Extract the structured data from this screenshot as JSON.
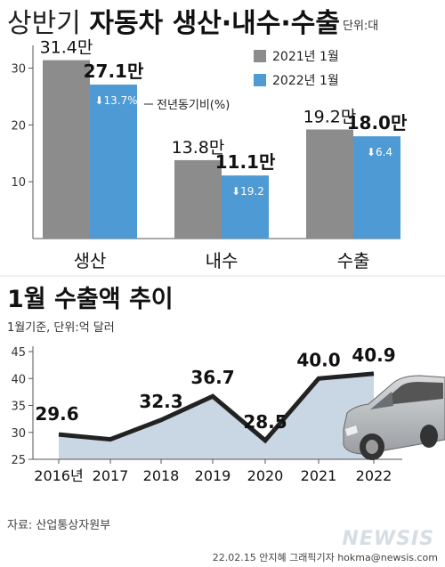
{
  "header": {
    "title_light": "상반기 ",
    "title_bold": "자동차 생산·내수·수출",
    "unit": "단위:대"
  },
  "chart1": {
    "legend": [
      {
        "label": "2021년 1월",
        "color": "#8c8c8c"
      },
      {
        "label": "2022년 1월",
        "color": "#4d9ad4"
      }
    ],
    "yoy_label": "전년동기비(%)"
  },
  "chart2": {
    "title": "1월 수출액 추이",
    "subtitle": "1월기준, 단위:억 달러"
  },
  "footer": {
    "source": "자료: 산업통상자원부",
    "credit": "22.02.15 안지혜 그래픽기자 hokma@newsis.com",
    "logo": "NEWSIS"
  },
  "colors": {
    "bar_2021": "#8c8c8c",
    "bar_2022": "#4d9ad4",
    "area_fill": "#c9d6e3",
    "line": "#222222",
    "axis": "#555555"
  },
  "chart_data": [
    {
      "type": "bar",
      "title": "상반기 자동차 생산·내수·수출",
      "categories": [
        "생산",
        "내수",
        "수출"
      ],
      "series": [
        {
          "name": "2021년 1월",
          "values": [
            31.4,
            13.8,
            19.2
          ],
          "labels": [
            "31.4만",
            "13.8만",
            "19.2만"
          ]
        },
        {
          "name": "2022년 1월",
          "values": [
            27.1,
            11.1,
            18.0
          ],
          "labels": [
            "27.1만",
            "11.1만",
            "18.0만"
          ]
        }
      ],
      "yoy_change": [
        "13.7%",
        "19.2",
        "6.4"
      ],
      "yticks": [
        10,
        20,
        30
      ],
      "ylim": [
        0,
        34
      ]
    },
    {
      "type": "area",
      "title": "1월 수출액 추이",
      "x": [
        "2016년",
        "2017",
        "2018",
        "2019",
        "2020",
        "2021",
        "2022"
      ],
      "values": [
        29.6,
        28.7,
        32.3,
        36.7,
        28.5,
        40.0,
        40.9
      ],
      "labels": [
        "29.6",
        "",
        "32.3",
        "36.7",
        "28.5",
        "40.0",
        "40.9"
      ],
      "yticks": [
        25,
        30,
        35,
        40,
        45
      ],
      "ylim": [
        25,
        45
      ]
    }
  ]
}
